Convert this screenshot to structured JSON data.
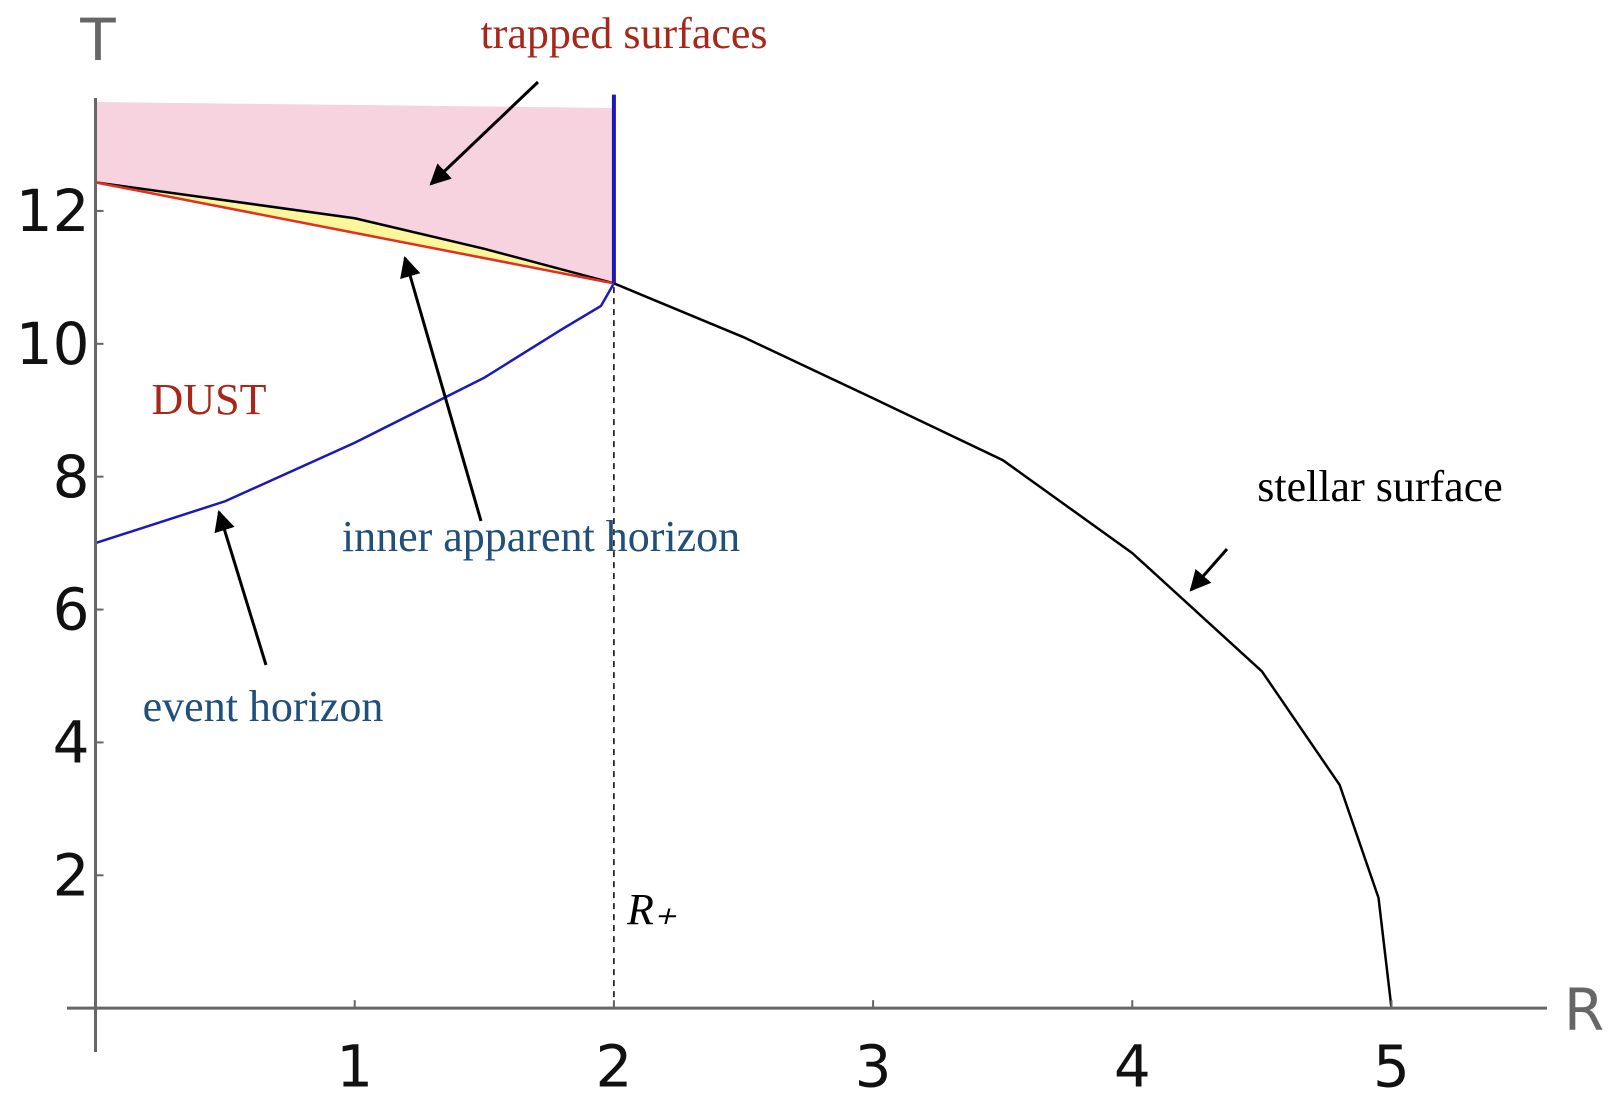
{
  "chart_data": {
    "type": "line",
    "x_label": "R",
    "y_label": "T",
    "xlim": [
      -0.11,
      5.6
    ],
    "ylim": [
      -0.66,
      13.7
    ],
    "xticks": [
      1,
      2,
      3,
      4,
      5
    ],
    "yticks": [
      2,
      4,
      6,
      8,
      10,
      12
    ],
    "grid": false,
    "legend": "none",
    "series": [
      {
        "color": "#000000",
        "x": [
          0,
          1,
          1.5,
          2,
          2.5,
          3,
          3.5,
          4,
          4.5,
          4.8,
          4.95,
          5
        ],
        "values": [
          12.43,
          11.89,
          11.43,
          10.91,
          10.1,
          9.18,
          8.25,
          6.85,
          5.07,
          3.36,
          1.66,
          0
        ]
      },
      {
        "color": "#1a1ab8",
        "x": [
          0,
          0.5,
          1,
          1.5,
          1.8,
          1.95,
          2
        ],
        "values": [
          7.0,
          7.63,
          8.51,
          9.49,
          10.22,
          10.57,
          10.91
        ]
      },
      {
        "color": "#e03020",
        "x": [
          0,
          2
        ],
        "values": [
          12.43,
          10.91
        ]
      },
      {
        "color": "#1a1ab8",
        "x": [
          2,
          2
        ],
        "values": [
          10.91,
          13.75
        ]
      },
      {
        "color": "#000000",
        "dashed": true,
        "x": [
          2,
          2
        ],
        "values": [
          0,
          10.91
        ]
      }
    ],
    "trapped_region": {
      "color": "#f7d3df",
      "x": [
        0,
        2
      ],
      "top": [
        13.64,
        13.55
      ]
    },
    "between_region": {
      "color": "#fbf79a"
    },
    "annotations": [
      {
        "text": "trapped surfaces",
        "color": "#a8271a"
      },
      {
        "text": "DUST",
        "color": "#a8271a"
      },
      {
        "text": "inner apparent horizon",
        "color": "#1f4f7a"
      },
      {
        "text": "event horizon",
        "color": "#1f4f7a"
      },
      {
        "text": "stellar surface",
        "color": "#000000"
      },
      {
        "text": "R₊",
        "color": "#000000"
      }
    ]
  }
}
